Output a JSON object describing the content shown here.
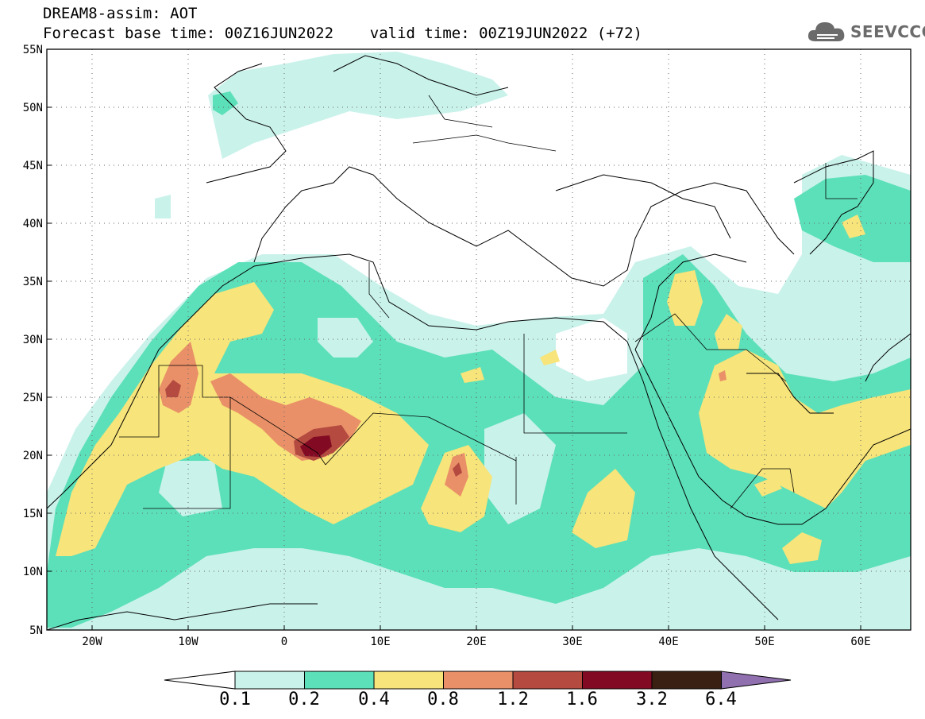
{
  "title": {
    "line1": "DREAM8-assim: AOT",
    "line2": "Forecast base time: 00Z16JUN2022    valid time: 00Z19JUN2022 (+72)"
  },
  "logo": {
    "text": "SEEVCCC",
    "icon": "cloud-icon"
  },
  "map": {
    "lat_ticks": [
      "55N",
      "50N",
      "45N",
      "40N",
      "35N",
      "30N",
      "25N",
      "20N",
      "15N",
      "10N",
      "5N"
    ],
    "lon_ticks": [
      "20W",
      "10W",
      "0",
      "10E",
      "20E",
      "30E",
      "40E",
      "50E",
      "60E"
    ],
    "extent": {
      "lon": [
        -25,
        65
      ],
      "lat": [
        5,
        55
      ]
    },
    "grid": "dotted"
  },
  "colorbar": {
    "labels": [
      "0.1",
      "0.2",
      "0.4",
      "0.8",
      "1.2",
      "1.6",
      "3.2",
      "6.4"
    ],
    "colors": [
      "#c9f2ea",
      "#5ce0b9",
      "#f7e47a",
      "#e99068",
      "#b44a40",
      "#820a22",
      "#3a2012",
      "#9170b0"
    ],
    "levels": [
      {
        "color": "#c9f2ea",
        "from": 0.1,
        "to": 0.2
      },
      {
        "color": "#5ce0b9",
        "from": 0.2,
        "to": 0.4
      },
      {
        "color": "#f7e47a",
        "from": 0.4,
        "to": 0.8
      },
      {
        "color": "#e99068",
        "from": 0.8,
        "to": 1.2
      },
      {
        "color": "#b44a40",
        "from": 1.2,
        "to": 1.6
      },
      {
        "color": "#820a22",
        "from": 1.6,
        "to": 3.2
      },
      {
        "color": "#3a2012",
        "from": 3.2,
        "to": 6.4
      }
    ]
  }
}
